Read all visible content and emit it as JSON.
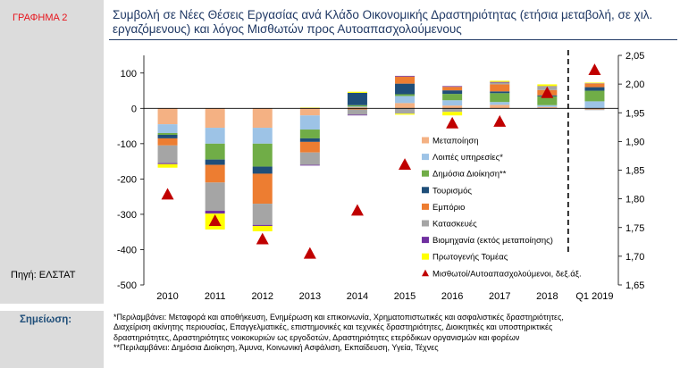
{
  "figure_label": "ΓΡΑΦΗΜΑ 2",
  "source": "Πηγή: ΕΛΣΤΑΤ",
  "title": "Συμβολή σε Νέες Θέσεις Εργασίας ανά Κλάδο Οικονομικής Δραστηριότητας (ετήσια μεταβολή, σε χιλ. εργαζόμενους) και λόγος Μισθωτών προς Αυτοαπασχολούμενους",
  "note": {
    "label": "Σημείωση:",
    "lines": [
      "*Περιλαμβάνει: Μεταφορά και αποθήκευση, Ενημέρωση και επικοινωνία, Χρηματοπιστωτικές και ασφαλιστικές δραστηριότητες,",
      "Διαχείριση ακίνητης περιουσίας, Επαγγελματικές, επιστημονικές και τεχνικές δραστηριότητες, Διοικητικές και υποστηρικτικές",
      "δραστηριότητες, Δραστηριότητες νοικοκυριών ως εργοδοτών, Δραστηριότητες ετερόδικων οργανισμών και φορέων",
      "**Περιλαμβάνει: Δημόσια Διοίκηση, Άμυνα, Κοινωνική Ασφάλιση, Εκπαίδευση, Υγεία, Τέχνες"
    ]
  },
  "chart_data": {
    "type": "bar",
    "stacked": true,
    "categories": [
      "2010",
      "2011",
      "2012",
      "2013",
      "2014",
      "2015",
      "2016",
      "2017",
      "2018",
      "Q1 2019"
    ],
    "y_ticks": [
      "100",
      "0",
      "-100",
      "-200",
      "-300",
      "-400",
      "-500"
    ],
    "y2_ticks": [
      "2,05",
      "2,00",
      "1,95",
      "1,90",
      "1,85",
      "1,80",
      "1,75",
      "1,70",
      "1,65"
    ],
    "ylim": [
      -500,
      150
    ],
    "y2lim": [
      1.65,
      2.05
    ],
    "grid": false,
    "legend_position": "right-inside",
    "series": [
      {
        "name": "Μεταποίηση",
        "color": "#f4b183",
        "values": [
          -45,
          -55,
          -55,
          -20,
          3,
          15,
          8,
          10,
          4,
          -3
        ]
      },
      {
        "name": "Λοιπές υπηρεσίες*",
        "color": "#9dc3e6",
        "values": [
          -25,
          -45,
          -45,
          -40,
          2,
          20,
          15,
          8,
          5,
          20
        ]
      },
      {
        "name": "Δημόσια Διοίκηση**",
        "color": "#70ad47",
        "values": [
          -5,
          -45,
          -65,
          -25,
          4,
          5,
          18,
          25,
          25,
          30
        ]
      },
      {
        "name": "Τουρισμός",
        "color": "#1f4e79",
        "values": [
          -10,
          -15,
          -20,
          -10,
          35,
          30,
          10,
          5,
          3,
          10
        ]
      },
      {
        "name": "Εμπόριο",
        "color": "#ed7d31",
        "values": [
          -20,
          -50,
          -85,
          -30,
          -3,
          20,
          10,
          20,
          15,
          10
        ]
      },
      {
        "name": "Κατασκευές",
        "color": "#a5a5a5",
        "values": [
          -50,
          -80,
          -60,
          -35,
          -15,
          -15,
          -10,
          5,
          10,
          -2
        ]
      },
      {
        "name": "Βιομηχανία (εκτός μεταποίησης)",
        "color": "#7030a0",
        "values": [
          -3,
          -8,
          -3,
          -2,
          -2,
          2,
          2,
          2,
          1,
          1
        ]
      },
      {
        "name": "Πρωτογενής Τομέας",
        "color": "#ffff00",
        "values": [
          -10,
          -45,
          -15,
          2,
          3,
          -3,
          -10,
          3,
          5,
          2
        ]
      }
    ],
    "line_series": {
      "name": "Μισθωτοί/Αυτοαπασχολούμενοι, δεξ.άξ.",
      "color": "#c00000",
      "axis": "right",
      "values": [
        1.808,
        1.762,
        1.73,
        1.705,
        1.78,
        1.86,
        1.932,
        1.935,
        1.985,
        2.025
      ]
    }
  }
}
